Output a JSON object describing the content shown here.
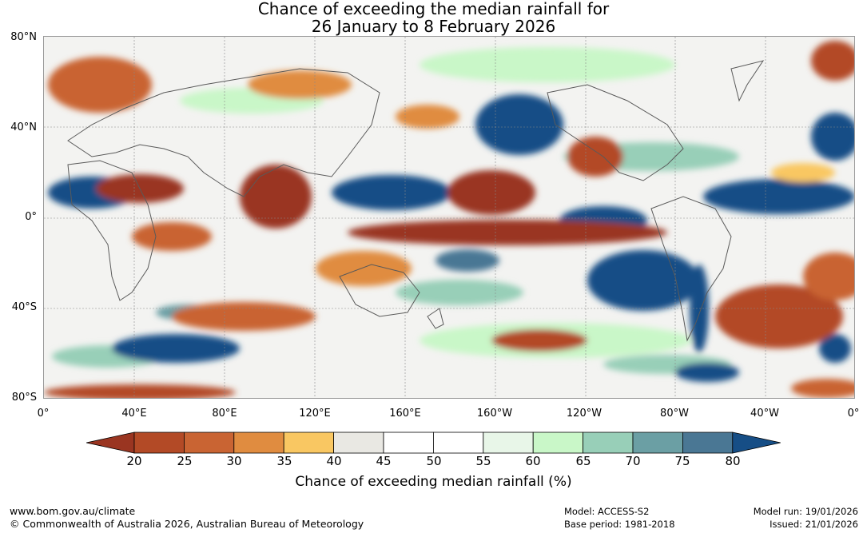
{
  "title": {
    "line1": "Chance of exceeding the median rainfall for",
    "line2": "26 January to 8 February 2026"
  },
  "lat_labels": [
    "80°N",
    "40°N",
    "0°",
    "40°S",
    "80°S"
  ],
  "lon_labels": [
    "0°",
    "40°E",
    "80°E",
    "120°E",
    "160°E",
    "160°W",
    "120°W",
    "80°W",
    "40°W",
    "0°"
  ],
  "colorbar": {
    "ticks": [
      "20",
      "25",
      "30",
      "35",
      "40",
      "45",
      "50",
      "55",
      "60",
      "65",
      "70",
      "75",
      "80"
    ],
    "colors": [
      "#9a3521",
      "#b34a26",
      "#c96433",
      "#e08c40",
      "#f9c762",
      "#e9e8e3",
      "#ffffff",
      "#ffffff",
      "#e8f6e8",
      "#c9f7c8",
      "#98cfb8",
      "#6b9fa4",
      "#4a7794",
      "#164e86"
    ],
    "label": "Chance of exceeding median rainfall (%)"
  },
  "footer": {
    "website": "www.bom.gov.au/climate",
    "copyright": "© Commonwealth of Australia 2026, Australian Bureau of Meteorology",
    "model": "Model: ACCESS-S2",
    "base_period": "Base period: 1981-2018",
    "model_run": "Model run: 19/01/2026",
    "issued": "Issued: 21/01/2026"
  }
}
